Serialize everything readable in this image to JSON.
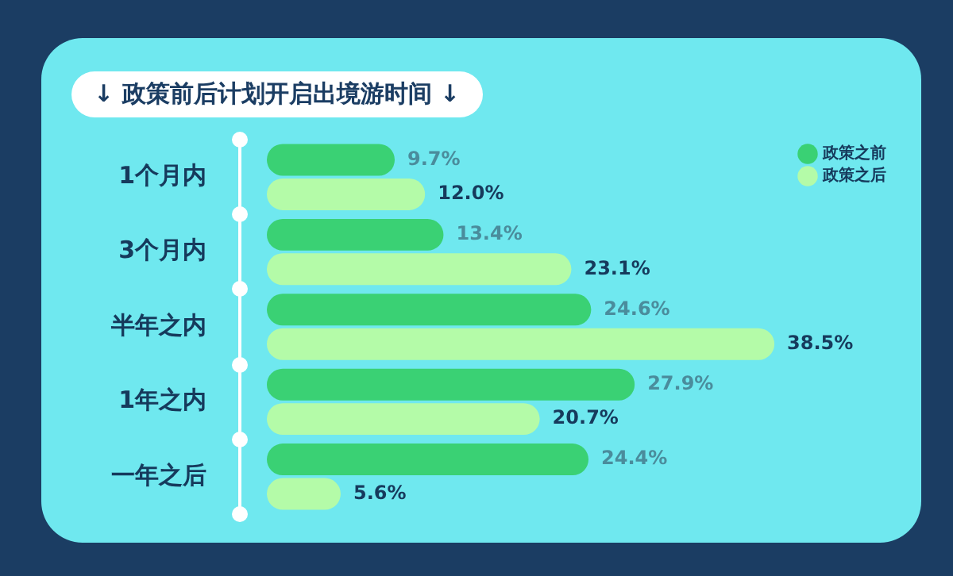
{
  "chart_data": {
    "type": "bar",
    "orientation": "horizontal",
    "title": "↓ 政策前后计划开启出境游时间 ↓",
    "categories": [
      "1个月内",
      "3个月内",
      "半年之内",
      "1年之内",
      "一年之后"
    ],
    "series": [
      {
        "name": "政策之前",
        "color": "#3ad174",
        "values": [
          9.7,
          13.4,
          24.6,
          27.9,
          24.4
        ],
        "value_labels": [
          "9.7%",
          "13.4%",
          "24.6%",
          "27.9%",
          "24.4%"
        ]
      },
      {
        "name": "政策之后",
        "color": "#b4fba8",
        "values": [
          12.0,
          23.1,
          38.5,
          20.7,
          5.6
        ],
        "value_labels": [
          "12.0%",
          "23.1%",
          "38.5%",
          "20.7%",
          "5.6%"
        ]
      }
    ],
    "tick_labels": "y",
    "legend": "top right"
  }
}
